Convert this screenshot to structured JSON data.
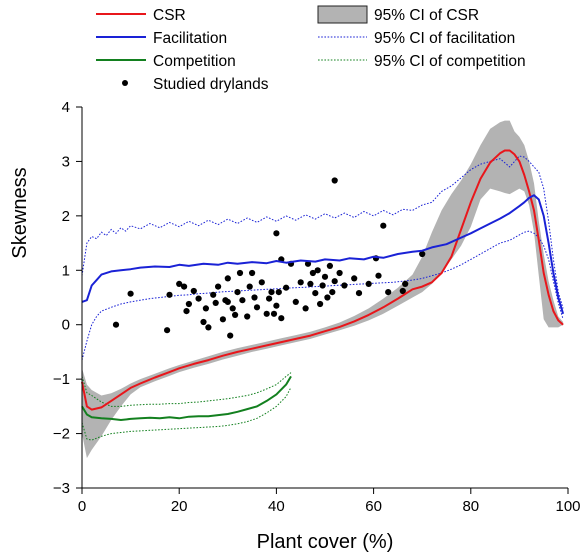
{
  "chart_data": {
    "type": "line",
    "xlabel": "Plant cover (%)",
    "ylabel": "Skewness",
    "xlim": [
      0,
      100
    ],
    "ylim": [
      -3,
      4
    ],
    "x_ticks": [
      "0",
      "20",
      "40",
      "60",
      "80",
      "100"
    ],
    "y_ticks": [
      "−3",
      "−2",
      "−1",
      "0",
      "1",
      "2",
      "3",
      "4"
    ],
    "grid": false,
    "legend": {
      "placement": "top",
      "entries": [
        {
          "label": "CSR",
          "kind": "line",
          "color": "#e8161b"
        },
        {
          "label": "Facilitation",
          "kind": "line",
          "color": "#1a22d6"
        },
        {
          "label": "Competition",
          "kind": "line",
          "color": "#13801f"
        },
        {
          "label": "Studied drylands",
          "kind": "point",
          "color": "#000000"
        },
        {
          "label": "95% CI of CSR",
          "kind": "band",
          "color": "#b3b3b3"
        },
        {
          "label": "95% CI of facilitation",
          "kind": "dotted",
          "color": "#1a22d6"
        },
        {
          "label": "95% CI of competition",
          "kind": "dotted",
          "color": "#13801f"
        }
      ]
    },
    "series": [
      {
        "name": "CSR",
        "kind": "line",
        "color": "#e8161b",
        "x": [
          0,
          1,
          2,
          4,
          6,
          8,
          10,
          12,
          15,
          18,
          20,
          23,
          26,
          29,
          32,
          35,
          38,
          41,
          44,
          47,
          50,
          53,
          56,
          59,
          62,
          65,
          68,
          70,
          72,
          74,
          76,
          78,
          80,
          82,
          84,
          86,
          87,
          88,
          89,
          90,
          91,
          92,
          93,
          94,
          95,
          96,
          97,
          98,
          99
        ],
        "y": [
          -1.05,
          -1.5,
          -1.56,
          -1.52,
          -1.4,
          -1.28,
          -1.16,
          -1.08,
          -0.97,
          -0.87,
          -0.8,
          -0.72,
          -0.65,
          -0.57,
          -0.5,
          -0.44,
          -0.38,
          -0.32,
          -0.26,
          -0.2,
          -0.12,
          -0.04,
          0.06,
          0.18,
          0.32,
          0.48,
          0.65,
          0.7,
          0.78,
          0.95,
          1.25,
          1.75,
          2.25,
          2.68,
          2.98,
          3.15,
          3.2,
          3.2,
          3.13,
          3.0,
          2.75,
          2.45,
          2.1,
          1.55,
          0.95,
          0.55,
          0.25,
          0.08,
          0.0
        ]
      },
      {
        "name": "Facilitation",
        "kind": "line",
        "color": "#1a22d6",
        "x": [
          0,
          1,
          2,
          3,
          4,
          6,
          8,
          10,
          12,
          15,
          18,
          20,
          22,
          25,
          28,
          30,
          32,
          35,
          38,
          40,
          42,
          45,
          48,
          50,
          53,
          55,
          58,
          60,
          62,
          65,
          68,
          70,
          72,
          75,
          78,
          80,
          82,
          84,
          86,
          88,
          90,
          91,
          92,
          93,
          94,
          95,
          96,
          97,
          98,
          99
        ],
        "y": [
          0.42,
          0.45,
          0.72,
          0.82,
          0.92,
          0.98,
          1.0,
          1.02,
          1.05,
          1.07,
          1.06,
          1.1,
          1.08,
          1.12,
          1.1,
          1.14,
          1.12,
          1.15,
          1.13,
          1.17,
          1.14,
          1.18,
          1.16,
          1.2,
          1.18,
          1.22,
          1.2,
          1.25,
          1.23,
          1.3,
          1.34,
          1.36,
          1.42,
          1.48,
          1.6,
          1.68,
          1.77,
          1.86,
          1.95,
          2.05,
          2.18,
          2.25,
          2.33,
          2.38,
          2.3,
          2.0,
          1.5,
          0.95,
          0.5,
          0.2
        ]
      },
      {
        "name": "Competition",
        "kind": "line",
        "color": "#13801f",
        "x": [
          0,
          1,
          2,
          4,
          6,
          8,
          10,
          12,
          14,
          16,
          18,
          20,
          22,
          24,
          26,
          28,
          30,
          32,
          34,
          36,
          38,
          40,
          42,
          43
        ],
        "y": [
          -1.5,
          -1.65,
          -1.7,
          -1.72,
          -1.73,
          -1.75,
          -1.73,
          -1.72,
          -1.71,
          -1.72,
          -1.7,
          -1.72,
          -1.69,
          -1.68,
          -1.68,
          -1.66,
          -1.64,
          -1.6,
          -1.55,
          -1.5,
          -1.4,
          -1.28,
          -1.1,
          -0.95
        ]
      },
      {
        "name": "95% CI of CSR (upper)",
        "kind": "band-upper",
        "color": "#b3b3b3",
        "x": [
          0,
          1,
          2,
          4,
          6,
          8,
          10,
          12,
          15,
          18,
          20,
          23,
          26,
          29,
          32,
          35,
          38,
          41,
          44,
          47,
          50,
          53,
          56,
          59,
          62,
          65,
          68,
          70,
          72,
          74,
          76,
          78,
          80,
          82,
          84,
          86,
          87,
          88,
          89,
          90,
          91,
          92,
          93,
          94,
          95,
          96,
          97,
          98,
          99
        ],
        "y": [
          -0.8,
          -1.1,
          -1.2,
          -1.3,
          -1.26,
          -1.18,
          -1.08,
          -1.0,
          -0.9,
          -0.8,
          -0.74,
          -0.66,
          -0.58,
          -0.5,
          -0.43,
          -0.37,
          -0.31,
          -0.25,
          -0.19,
          -0.13,
          -0.05,
          0.04,
          0.16,
          0.3,
          0.48,
          0.68,
          0.92,
          1.25,
          1.7,
          2.1,
          2.4,
          2.65,
          2.95,
          3.3,
          3.6,
          3.72,
          3.75,
          3.75,
          3.55,
          3.45,
          3.3,
          3.0,
          2.6,
          1.9,
          1.3,
          0.8,
          0.45,
          0.15,
          0.05
        ]
      },
      {
        "name": "95% CI of CSR (lower)",
        "kind": "band-lower",
        "color": "#b3b3b3",
        "x": [
          0,
          1,
          2,
          4,
          6,
          8,
          10,
          12,
          15,
          18,
          20,
          23,
          26,
          29,
          32,
          35,
          38,
          41,
          44,
          47,
          50,
          53,
          56,
          59,
          62,
          65,
          68,
          70,
          72,
          74,
          76,
          78,
          80,
          82,
          84,
          86,
          87,
          88,
          89,
          90,
          91,
          92,
          93,
          94,
          95,
          96,
          97,
          98,
          99
        ],
        "y": [
          -2.0,
          -2.45,
          -2.3,
          -2.05,
          -1.75,
          -1.5,
          -1.28,
          -1.15,
          -1.04,
          -0.94,
          -0.87,
          -0.79,
          -0.72,
          -0.64,
          -0.57,
          -0.5,
          -0.44,
          -0.38,
          -0.32,
          -0.26,
          -0.18,
          -0.1,
          -0.02,
          0.08,
          0.2,
          0.35,
          0.5,
          0.6,
          0.75,
          0.95,
          1.2,
          1.45,
          1.8,
          2.3,
          2.5,
          2.45,
          2.42,
          2.4,
          2.45,
          2.5,
          2.45,
          2.2,
          1.7,
          0.9,
          0.1,
          -0.05,
          -0.05,
          -0.05,
          0.0
        ]
      },
      {
        "name": "95% CI of facilitation (upper)",
        "kind": "dotted",
        "color": "#1a22d6",
        "x": [
          0,
          1,
          2,
          3,
          4,
          5,
          6,
          7,
          8,
          9,
          10,
          12,
          14,
          16,
          18,
          20,
          22,
          24,
          26,
          28,
          30,
          32,
          34,
          36,
          38,
          40,
          42,
          44,
          46,
          48,
          50,
          52,
          54,
          56,
          58,
          60,
          62,
          64,
          66,
          68,
          70,
          72,
          74,
          76,
          78,
          80,
          82,
          84,
          86,
          88,
          90,
          91,
          92,
          93,
          94,
          95,
          96,
          97,
          98,
          99
        ],
        "y": [
          0.9,
          1.5,
          1.62,
          1.58,
          1.7,
          1.64,
          1.75,
          1.68,
          1.78,
          1.72,
          1.82,
          1.76,
          1.86,
          1.78,
          1.88,
          1.8,
          1.9,
          1.82,
          1.92,
          1.84,
          1.94,
          1.86,
          1.96,
          1.88,
          1.98,
          1.9,
          2.0,
          1.92,
          2.02,
          1.94,
          2.04,
          1.96,
          2.05,
          1.97,
          2.08,
          2.0,
          2.1,
          2.02,
          2.12,
          2.1,
          2.2,
          2.25,
          2.45,
          2.55,
          2.7,
          2.85,
          2.95,
          3.0,
          3.05,
          2.9,
          3.1,
          3.08,
          3.0,
          2.9,
          2.8,
          2.5,
          1.9,
          1.2,
          0.6,
          0.3
        ]
      },
      {
        "name": "95% CI of facilitation (lower)",
        "kind": "dotted",
        "color": "#1a22d6",
        "x": [
          0,
          1,
          2,
          3,
          4,
          6,
          8,
          10,
          12,
          14,
          16,
          18,
          20,
          22,
          24,
          26,
          28,
          30,
          32,
          34,
          36,
          38,
          40,
          42,
          44,
          46,
          48,
          50,
          52,
          54,
          56,
          58,
          60,
          62,
          64,
          66,
          68,
          70,
          72,
          74,
          76,
          78,
          80,
          82,
          84,
          86,
          88,
          90,
          91,
          92,
          93,
          94,
          95,
          96,
          97,
          98,
          99
        ],
        "y": [
          -0.65,
          -0.3,
          0.0,
          0.15,
          0.25,
          0.32,
          0.38,
          0.42,
          0.45,
          0.48,
          0.5,
          0.52,
          0.54,
          0.55,
          0.57,
          0.58,
          0.6,
          0.61,
          0.62,
          0.63,
          0.64,
          0.65,
          0.66,
          0.67,
          0.68,
          0.69,
          0.7,
          0.71,
          0.72,
          0.73,
          0.74,
          0.75,
          0.76,
          0.77,
          0.78,
          0.8,
          0.82,
          0.85,
          0.9,
          0.95,
          1.02,
          1.1,
          1.2,
          1.3,
          1.4,
          1.5,
          1.55,
          1.65,
          1.7,
          1.72,
          1.68,
          1.6,
          1.45,
          1.2,
          0.8,
          0.4,
          0.1
        ]
      },
      {
        "name": "95% CI of competition (upper)",
        "kind": "dotted",
        "color": "#13801f",
        "x": [
          0,
          1,
          2,
          4,
          6,
          8,
          10,
          12,
          14,
          16,
          18,
          20,
          22,
          24,
          26,
          28,
          30,
          32,
          34,
          36,
          38,
          40,
          42,
          43
        ],
        "y": [
          -0.95,
          -1.25,
          -1.3,
          -1.42,
          -1.5,
          -1.5,
          -1.48,
          -1.47,
          -1.46,
          -1.46,
          -1.45,
          -1.45,
          -1.43,
          -1.42,
          -1.4,
          -1.38,
          -1.36,
          -1.33,
          -1.3,
          -1.25,
          -1.18,
          -1.1,
          -0.95,
          -0.88
        ]
      },
      {
        "name": "95% CI of competition (lower)",
        "kind": "dotted",
        "color": "#13801f",
        "x": [
          0,
          1,
          2,
          4,
          6,
          8,
          10,
          12,
          14,
          16,
          18,
          20,
          22,
          24,
          26,
          28,
          30,
          32,
          34,
          36,
          38,
          40,
          42,
          43
        ],
        "y": [
          -1.8,
          -2.1,
          -2.12,
          -2.05,
          -2.0,
          -1.98,
          -1.96,
          -1.95,
          -1.94,
          -1.93,
          -1.92,
          -1.91,
          -1.9,
          -1.89,
          -1.88,
          -1.87,
          -1.85,
          -1.82,
          -1.78,
          -1.72,
          -1.62,
          -1.5,
          -1.32,
          -1.15
        ]
      },
      {
        "name": "Studied drylands",
        "kind": "scatter",
        "color": "#000000",
        "points": [
          [
            7,
            0.0
          ],
          [
            10,
            0.57
          ],
          [
            17.5,
            -0.1
          ],
          [
            18,
            0.55
          ],
          [
            20,
            0.75
          ],
          [
            21,
            0.7
          ],
          [
            21.5,
            0.25
          ],
          [
            22,
            0.38
          ],
          [
            23,
            0.62
          ],
          [
            24,
            0.48
          ],
          [
            25,
            0.05
          ],
          [
            25.5,
            0.3
          ],
          [
            26,
            -0.05
          ],
          [
            27,
            0.55
          ],
          [
            27.5,
            0.4
          ],
          [
            28,
            0.7
          ],
          [
            29,
            0.1
          ],
          [
            29.5,
            0.45
          ],
          [
            30,
            0.85
          ],
          [
            30,
            0.42
          ],
          [
            30.5,
            -0.2
          ],
          [
            31,
            0.3
          ],
          [
            31.5,
            0.18
          ],
          [
            32,
            0.6
          ],
          [
            32.5,
            0.95
          ],
          [
            33,
            0.45
          ],
          [
            34,
            0.15
          ],
          [
            34.5,
            0.7
          ],
          [
            35,
            0.95
          ],
          [
            35.5,
            0.5
          ],
          [
            36,
            0.32
          ],
          [
            37,
            0.78
          ],
          [
            38,
            0.2
          ],
          [
            38.5,
            0.48
          ],
          [
            39,
            0.6
          ],
          [
            39.5,
            0.2
          ],
          [
            40,
            1.68
          ],
          [
            40,
            0.35
          ],
          [
            40.5,
            0.6
          ],
          [
            41,
            0.12
          ],
          [
            41,
            1.2
          ],
          [
            42,
            0.68
          ],
          [
            43,
            1.12
          ],
          [
            44,
            0.42
          ],
          [
            45,
            0.78
          ],
          [
            46,
            0.3
          ],
          [
            46.5,
            1.12
          ],
          [
            47,
            0.75
          ],
          [
            47.5,
            0.95
          ],
          [
            48,
            0.58
          ],
          [
            48.5,
            1.0
          ],
          [
            49,
            0.38
          ],
          [
            49.5,
            0.72
          ],
          [
            50,
            0.88
          ],
          [
            50.5,
            0.5
          ],
          [
            51,
            1.08
          ],
          [
            51.5,
            0.6
          ],
          [
            52,
            2.65
          ],
          [
            52,
            0.8
          ],
          [
            53,
            0.95
          ],
          [
            54,
            0.72
          ],
          [
            56,
            0.85
          ],
          [
            57,
            0.58
          ],
          [
            59,
            0.75
          ],
          [
            60.5,
            1.22
          ],
          [
            61,
            0.9
          ],
          [
            62,
            1.82
          ],
          [
            63,
            0.6
          ],
          [
            66,
            0.62
          ],
          [
            66.5,
            0.75
          ],
          [
            70,
            1.3
          ]
        ]
      }
    ]
  }
}
